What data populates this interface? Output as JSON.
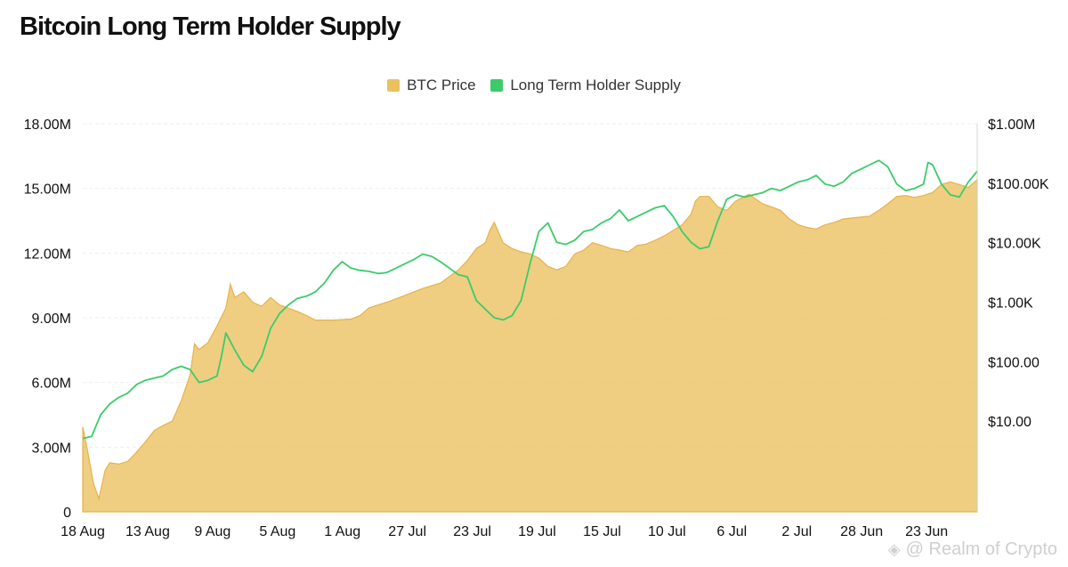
{
  "chart_data": {
    "type": "area",
    "title": "Bitcoin Long Term Holder Supply",
    "legend": [
      {
        "name": "BTC Price",
        "color": "#EBC05E"
      },
      {
        "name": "Long Term Holder Supply",
        "color": "#3CCB6B"
      }
    ],
    "legend_position": "top-center",
    "grid": true,
    "left_axis": {
      "ticks": [
        "0",
        "3.00M",
        "6.00M",
        "9.00M",
        "12.00M",
        "15.00M",
        "18.00M"
      ],
      "values": [
        0,
        3000000,
        6000000,
        9000000,
        12000000,
        15000000,
        18000000
      ],
      "range": [
        0,
        18000000
      ]
    },
    "right_axis": {
      "scale": "log",
      "ticks": [
        "$10.00",
        "$100.00",
        "$1.00K",
        "$10.00K",
        "$100.00K",
        "$1.00M"
      ],
      "values": [
        10,
        100,
        1000,
        10000,
        100000,
        1000000
      ],
      "range": [
        0.3,
        1000000
      ]
    },
    "x_ticks": [
      "18 Aug",
      "13 Aug",
      "9 Aug",
      "5 Aug",
      "1 Aug",
      "27 Jul",
      "23 Jul",
      "19 Jul",
      "15 Jul",
      "10 Jul",
      "6 Jul",
      "2 Jul",
      "28 Jun",
      "23 Jun"
    ],
    "series": [
      {
        "name": "BTC Price",
        "axis": "right",
        "type": "area",
        "color": "#EBC05E",
        "points": [
          [
            0,
            8
          ],
          [
            0.005,
            3.4
          ],
          [
            0.012,
            0.9
          ],
          [
            0.018,
            0.5
          ],
          [
            0.025,
            1.5
          ],
          [
            0.03,
            2.0
          ],
          [
            0.04,
            1.9
          ],
          [
            0.05,
            2.1
          ],
          [
            0.06,
            3.0
          ],
          [
            0.07,
            4.5
          ],
          [
            0.08,
            7
          ],
          [
            0.09,
            8.5
          ],
          [
            0.1,
            10
          ],
          [
            0.11,
            22
          ],
          [
            0.12,
            60
          ],
          [
            0.125,
            200
          ],
          [
            0.13,
            160
          ],
          [
            0.14,
            210
          ],
          [
            0.15,
            400
          ],
          [
            0.16,
            800
          ],
          [
            0.165,
            2000
          ],
          [
            0.17,
            1200
          ],
          [
            0.18,
            1500
          ],
          [
            0.19,
            1000
          ],
          [
            0.2,
            850
          ],
          [
            0.21,
            1200
          ],
          [
            0.22,
            900
          ],
          [
            0.24,
            700
          ],
          [
            0.25,
            600
          ],
          [
            0.26,
            500
          ],
          [
            0.28,
            500
          ],
          [
            0.3,
            520
          ],
          [
            0.31,
            600
          ],
          [
            0.32,
            800
          ],
          [
            0.33,
            900
          ],
          [
            0.34,
            1000
          ],
          [
            0.36,
            1300
          ],
          [
            0.38,
            1700
          ],
          [
            0.4,
            2100
          ],
          [
            0.42,
            3500
          ],
          [
            0.43,
            5000
          ],
          [
            0.44,
            8000
          ],
          [
            0.45,
            10000
          ],
          [
            0.455,
            16000
          ],
          [
            0.46,
            22000
          ],
          [
            0.47,
            10000
          ],
          [
            0.48,
            8000
          ],
          [
            0.49,
            7000
          ],
          [
            0.5,
            6500
          ],
          [
            0.51,
            5500
          ],
          [
            0.52,
            4000
          ],
          [
            0.53,
            3500
          ],
          [
            0.54,
            4000
          ],
          [
            0.55,
            6500
          ],
          [
            0.56,
            7500
          ],
          [
            0.57,
            10000
          ],
          [
            0.58,
            9000
          ],
          [
            0.59,
            8000
          ],
          [
            0.6,
            7500
          ],
          [
            0.61,
            7000
          ],
          [
            0.62,
            9000
          ],
          [
            0.63,
            9500
          ],
          [
            0.64,
            11000
          ],
          [
            0.65,
            13000
          ],
          [
            0.66,
            16000
          ],
          [
            0.67,
            20000
          ],
          [
            0.68,
            30000
          ],
          [
            0.685,
            50000
          ],
          [
            0.69,
            60000
          ],
          [
            0.7,
            60000
          ],
          [
            0.71,
            40000
          ],
          [
            0.72,
            35000
          ],
          [
            0.73,
            50000
          ],
          [
            0.74,
            60000
          ],
          [
            0.745,
            65000
          ],
          [
            0.76,
            45000
          ],
          [
            0.77,
            40000
          ],
          [
            0.78,
            35000
          ],
          [
            0.79,
            25000
          ],
          [
            0.8,
            20000
          ],
          [
            0.81,
            18000
          ],
          [
            0.82,
            17000
          ],
          [
            0.83,
            20000
          ],
          [
            0.84,
            22000
          ],
          [
            0.85,
            25000
          ],
          [
            0.86,
            26000
          ],
          [
            0.87,
            27000
          ],
          [
            0.88,
            28000
          ],
          [
            0.89,
            35000
          ],
          [
            0.9,
            45000
          ],
          [
            0.91,
            60000
          ],
          [
            0.92,
            62000
          ],
          [
            0.93,
            58000
          ],
          [
            0.94,
            62000
          ],
          [
            0.95,
            70000
          ],
          [
            0.96,
            95000
          ],
          [
            0.97,
            105000
          ],
          [
            0.98,
            95000
          ],
          [
            0.99,
            85000
          ],
          [
            1.0,
            115000
          ]
        ]
      },
      {
        "name": "Long Term Holder Supply",
        "axis": "left",
        "type": "line",
        "color": "#3CCB6B",
        "points": [
          [
            0,
            3.4
          ],
          [
            0.01,
            3.5
          ],
          [
            0.02,
            4.5
          ],
          [
            0.03,
            5.0
          ],
          [
            0.04,
            5.3
          ],
          [
            0.05,
            5.5
          ],
          [
            0.06,
            5.9
          ],
          [
            0.07,
            6.1
          ],
          [
            0.08,
            6.2
          ],
          [
            0.09,
            6.3
          ],
          [
            0.1,
            6.6
          ],
          [
            0.11,
            6.75
          ],
          [
            0.12,
            6.6
          ],
          [
            0.13,
            6.0
          ],
          [
            0.14,
            6.1
          ],
          [
            0.15,
            6.3
          ],
          [
            0.155,
            7.2
          ],
          [
            0.16,
            8.3
          ],
          [
            0.17,
            7.5
          ],
          [
            0.18,
            6.8
          ],
          [
            0.19,
            6.5
          ],
          [
            0.2,
            7.2
          ],
          [
            0.21,
            8.5
          ],
          [
            0.22,
            9.2
          ],
          [
            0.23,
            9.6
          ],
          [
            0.24,
            9.9
          ],
          [
            0.25,
            10.0
          ],
          [
            0.26,
            10.2
          ],
          [
            0.27,
            10.6
          ],
          [
            0.28,
            11.2
          ],
          [
            0.29,
            11.6
          ],
          [
            0.3,
            11.3
          ],
          [
            0.31,
            11.2
          ],
          [
            0.32,
            11.15
          ],
          [
            0.33,
            11.05
          ],
          [
            0.34,
            11.1
          ],
          [
            0.35,
            11.3
          ],
          [
            0.36,
            11.5
          ],
          [
            0.37,
            11.7
          ],
          [
            0.38,
            11.95
          ],
          [
            0.39,
            11.85
          ],
          [
            0.4,
            11.6
          ],
          [
            0.41,
            11.3
          ],
          [
            0.42,
            11.0
          ],
          [
            0.43,
            10.9
          ],
          [
            0.44,
            9.8
          ],
          [
            0.45,
            9.4
          ],
          [
            0.46,
            9.0
          ],
          [
            0.47,
            8.9
          ],
          [
            0.48,
            9.1
          ],
          [
            0.49,
            9.8
          ],
          [
            0.5,
            11.5
          ],
          [
            0.51,
            13.0
          ],
          [
            0.52,
            13.4
          ],
          [
            0.53,
            12.5
          ],
          [
            0.54,
            12.4
          ],
          [
            0.55,
            12.6
          ],
          [
            0.56,
            13.0
          ],
          [
            0.57,
            13.1
          ],
          [
            0.58,
            13.4
          ],
          [
            0.59,
            13.6
          ],
          [
            0.6,
            14.0
          ],
          [
            0.61,
            13.5
          ],
          [
            0.62,
            13.7
          ],
          [
            0.63,
            13.9
          ],
          [
            0.64,
            14.1
          ],
          [
            0.65,
            14.2
          ],
          [
            0.66,
            13.7
          ],
          [
            0.67,
            13.0
          ],
          [
            0.68,
            12.5
          ],
          [
            0.69,
            12.2
          ],
          [
            0.7,
            12.3
          ],
          [
            0.71,
            13.5
          ],
          [
            0.72,
            14.5
          ],
          [
            0.73,
            14.7
          ],
          [
            0.74,
            14.6
          ],
          [
            0.75,
            14.7
          ],
          [
            0.76,
            14.8
          ],
          [
            0.77,
            15.0
          ],
          [
            0.78,
            14.9
          ],
          [
            0.79,
            15.1
          ],
          [
            0.8,
            15.3
          ],
          [
            0.81,
            15.4
          ],
          [
            0.82,
            15.6
          ],
          [
            0.83,
            15.2
          ],
          [
            0.84,
            15.1
          ],
          [
            0.85,
            15.3
          ],
          [
            0.86,
            15.7
          ],
          [
            0.87,
            15.9
          ],
          [
            0.88,
            16.1
          ],
          [
            0.89,
            16.3
          ],
          [
            0.9,
            16.0
          ],
          [
            0.91,
            15.2
          ],
          [
            0.92,
            14.9
          ],
          [
            0.93,
            15.0
          ],
          [
            0.94,
            15.2
          ],
          [
            0.945,
            16.2
          ],
          [
            0.95,
            16.1
          ],
          [
            0.96,
            15.2
          ],
          [
            0.97,
            14.7
          ],
          [
            0.98,
            14.6
          ],
          [
            0.99,
            15.3
          ],
          [
            1.0,
            15.8
          ]
        ]
      }
    ]
  },
  "watermark": {
    "text": "@ Realm of Crypto",
    "icon": "binance-square-icon"
  }
}
